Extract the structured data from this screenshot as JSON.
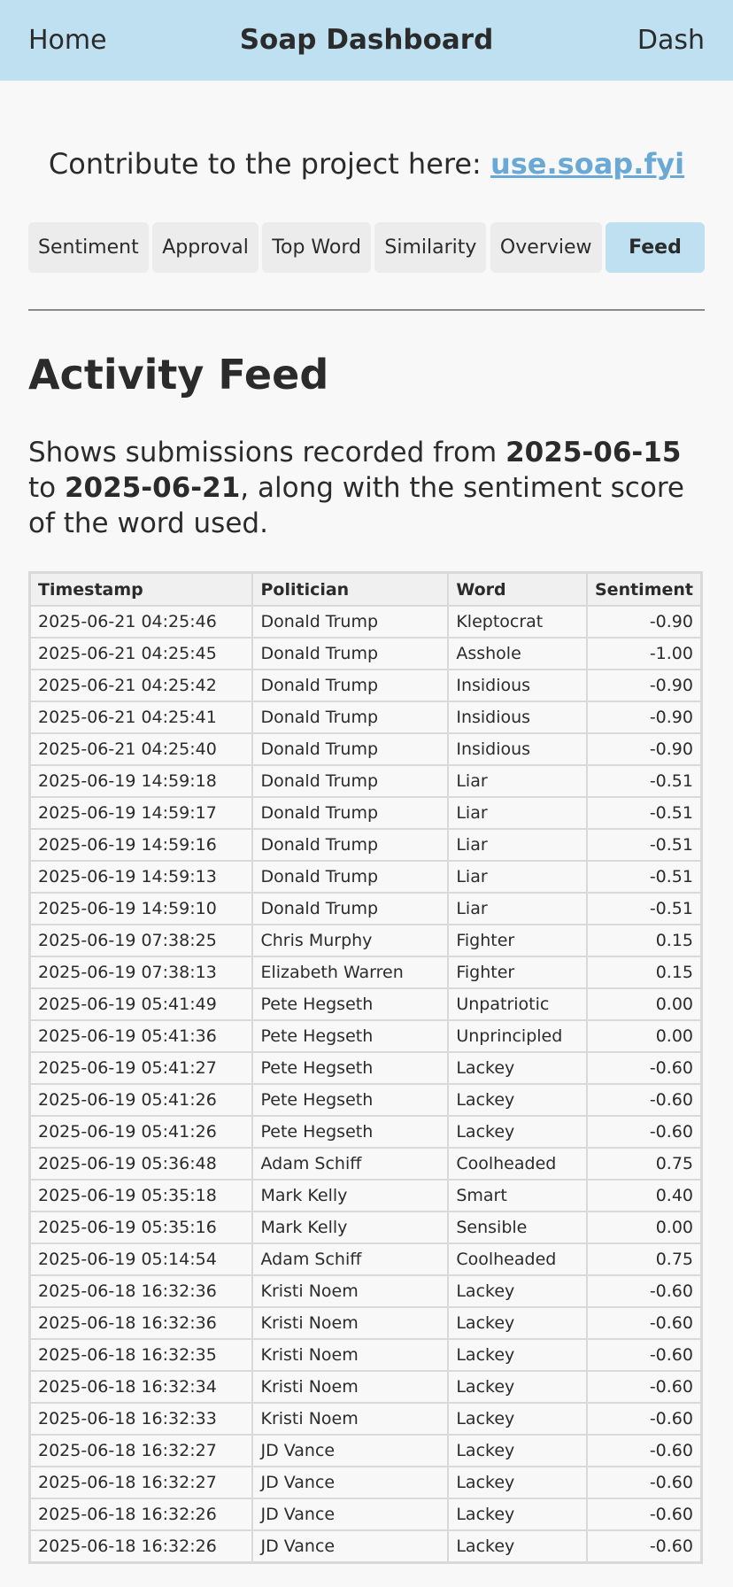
{
  "header": {
    "home_label": "Home",
    "title": "Soap Dashboard",
    "dash_label": "Dash"
  },
  "contribute": {
    "text": "Contribute to the project here: ",
    "link_label": "use.soap.fyi"
  },
  "tabs": [
    {
      "label": "Sentiment",
      "active": false
    },
    {
      "label": "Approval",
      "active": false
    },
    {
      "label": "Top Word",
      "active": false
    },
    {
      "label": "Similarity",
      "active": false
    },
    {
      "label": "Overview",
      "active": false
    },
    {
      "label": "Feed",
      "active": true
    }
  ],
  "page": {
    "heading": "Activity Feed",
    "desc_prefix": "Shows submissions recorded from ",
    "start_date": "2025-06-15",
    "desc_middle": " to ",
    "end_date": "2025-06-21",
    "desc_suffix": ", along with the sentiment score of the word used."
  },
  "table": {
    "columns": [
      "Timestamp",
      "Politician",
      "Word",
      "Sentiment"
    ],
    "rows": [
      [
        "2025-06-21 04:25:46",
        "Donald Trump",
        "Kleptocrat",
        "-0.90"
      ],
      [
        "2025-06-21 04:25:45",
        "Donald Trump",
        "Asshole",
        "-1.00"
      ],
      [
        "2025-06-21 04:25:42",
        "Donald Trump",
        "Insidious",
        "-0.90"
      ],
      [
        "2025-06-21 04:25:41",
        "Donald Trump",
        "Insidious",
        "-0.90"
      ],
      [
        "2025-06-21 04:25:40",
        "Donald Trump",
        "Insidious",
        "-0.90"
      ],
      [
        "2025-06-19 14:59:18",
        "Donald Trump",
        "Liar",
        "-0.51"
      ],
      [
        "2025-06-19 14:59:17",
        "Donald Trump",
        "Liar",
        "-0.51"
      ],
      [
        "2025-06-19 14:59:16",
        "Donald Trump",
        "Liar",
        "-0.51"
      ],
      [
        "2025-06-19 14:59:13",
        "Donald Trump",
        "Liar",
        "-0.51"
      ],
      [
        "2025-06-19 14:59:10",
        "Donald Trump",
        "Liar",
        "-0.51"
      ],
      [
        "2025-06-19 07:38:25",
        "Chris Murphy",
        "Fighter",
        "0.15"
      ],
      [
        "2025-06-19 07:38:13",
        "Elizabeth Warren",
        "Fighter",
        "0.15"
      ],
      [
        "2025-06-19 05:41:49",
        "Pete Hegseth",
        "Unpatriotic",
        "0.00"
      ],
      [
        "2025-06-19 05:41:36",
        "Pete Hegseth",
        "Unprincipled",
        "0.00"
      ],
      [
        "2025-06-19 05:41:27",
        "Pete Hegseth",
        "Lackey",
        "-0.60"
      ],
      [
        "2025-06-19 05:41:26",
        "Pete Hegseth",
        "Lackey",
        "-0.60"
      ],
      [
        "2025-06-19 05:41:26",
        "Pete Hegseth",
        "Lackey",
        "-0.60"
      ],
      [
        "2025-06-19 05:36:48",
        "Adam Schiff",
        "Coolheaded",
        "0.75"
      ],
      [
        "2025-06-19 05:35:18",
        "Mark Kelly",
        "Smart",
        "0.40"
      ],
      [
        "2025-06-19 05:35:16",
        "Mark Kelly",
        "Sensible",
        "0.00"
      ],
      [
        "2025-06-19 05:14:54",
        "Adam Schiff",
        "Coolheaded",
        "0.75"
      ],
      [
        "2025-06-18 16:32:36",
        "Kristi Noem",
        "Lackey",
        "-0.60"
      ],
      [
        "2025-06-18 16:32:36",
        "Kristi Noem",
        "Lackey",
        "-0.60"
      ],
      [
        "2025-06-18 16:32:35",
        "Kristi Noem",
        "Lackey",
        "-0.60"
      ],
      [
        "2025-06-18 16:32:34",
        "Kristi Noem",
        "Lackey",
        "-0.60"
      ],
      [
        "2025-06-18 16:32:33",
        "Kristi Noem",
        "Lackey",
        "-0.60"
      ],
      [
        "2025-06-18 16:32:27",
        "JD Vance",
        "Lackey",
        "-0.60"
      ],
      [
        "2025-06-18 16:32:27",
        "JD Vance",
        "Lackey",
        "-0.60"
      ],
      [
        "2025-06-18 16:32:26",
        "JD Vance",
        "Lackey",
        "-0.60"
      ],
      [
        "2025-06-18 16:32:26",
        "JD Vance",
        "Lackey",
        "-0.60"
      ]
    ]
  },
  "colors": {
    "header_bg": "#bee0f0",
    "link": "#6aa9d6",
    "tab_bg": "#ececec",
    "tab_active_bg": "#bee0f0",
    "page_bg": "#f8f8f8"
  }
}
